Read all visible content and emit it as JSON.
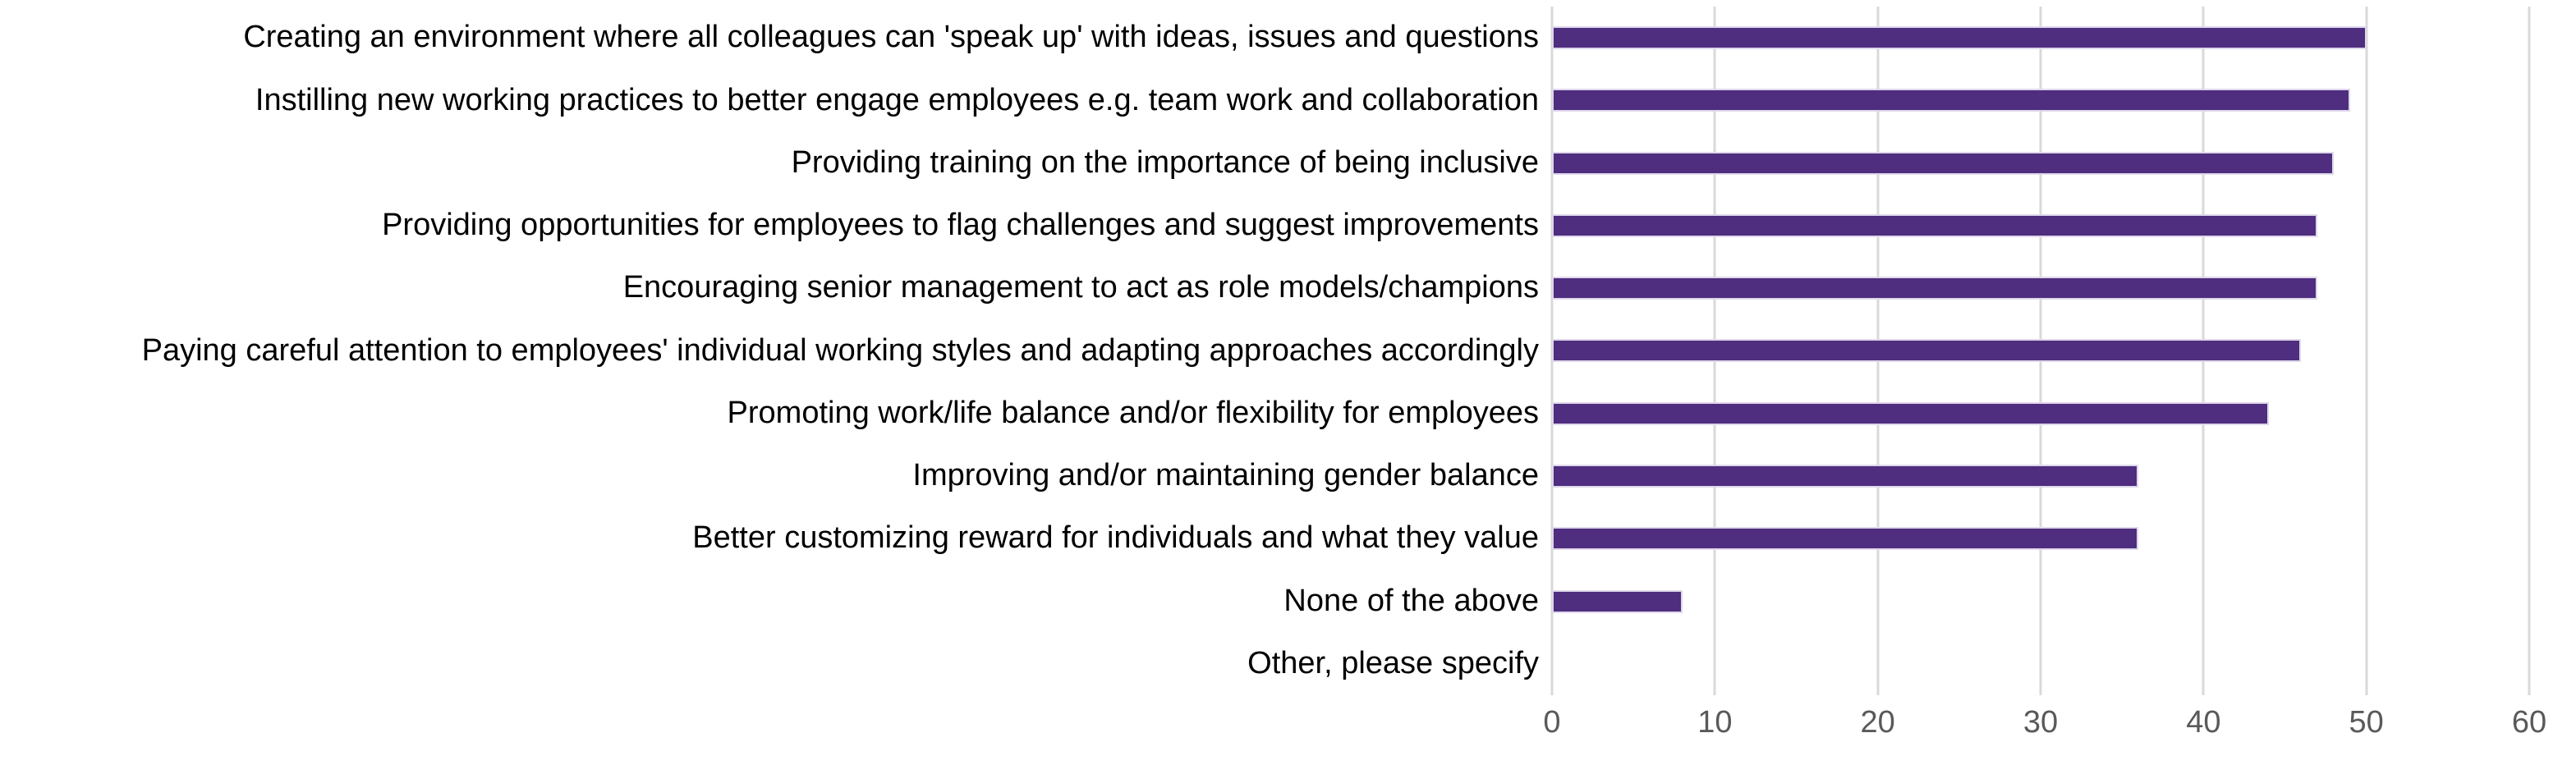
{
  "chart_data": {
    "type": "bar",
    "orientation": "horizontal",
    "title": "",
    "xlabel": "",
    "ylabel": "",
    "categories": [
      "Creating an environment where all colleagues can 'speak up' with ideas, issues and questions",
      "Instilling new working practices to better engage employees e.g. team work and collaboration",
      "Providing training on the importance of being inclusive",
      "Providing opportunities for employees to flag challenges and suggest improvements",
      "Encouraging senior management to act as role models/champions",
      "Paying careful attention to employees' individual working styles and adapting approaches accordingly",
      "Promoting work/life balance and/or flexibility for employees",
      "Improving and/or maintaining gender balance",
      "Better customizing reward for individuals and what they value",
      "None of the above",
      "Other, please specify"
    ],
    "values": [
      50,
      49,
      48,
      47,
      47,
      46,
      44,
      36,
      36,
      8,
      0
    ],
    "xlim": [
      0,
      60
    ],
    "xticks": [
      "0",
      "10",
      "20",
      "30",
      "40",
      "50",
      "60"
    ],
    "grid": "vertical-gridlines-only",
    "axis_line": "none",
    "legend_position": "none",
    "colors": {
      "bar_fill": "#4f2d7f",
      "bar_edge": "#ded8ea",
      "gridline": "#d9d9d9",
      "tick_label": "#595959",
      "category_label": "#000000",
      "background": "#ffffff"
    }
  }
}
